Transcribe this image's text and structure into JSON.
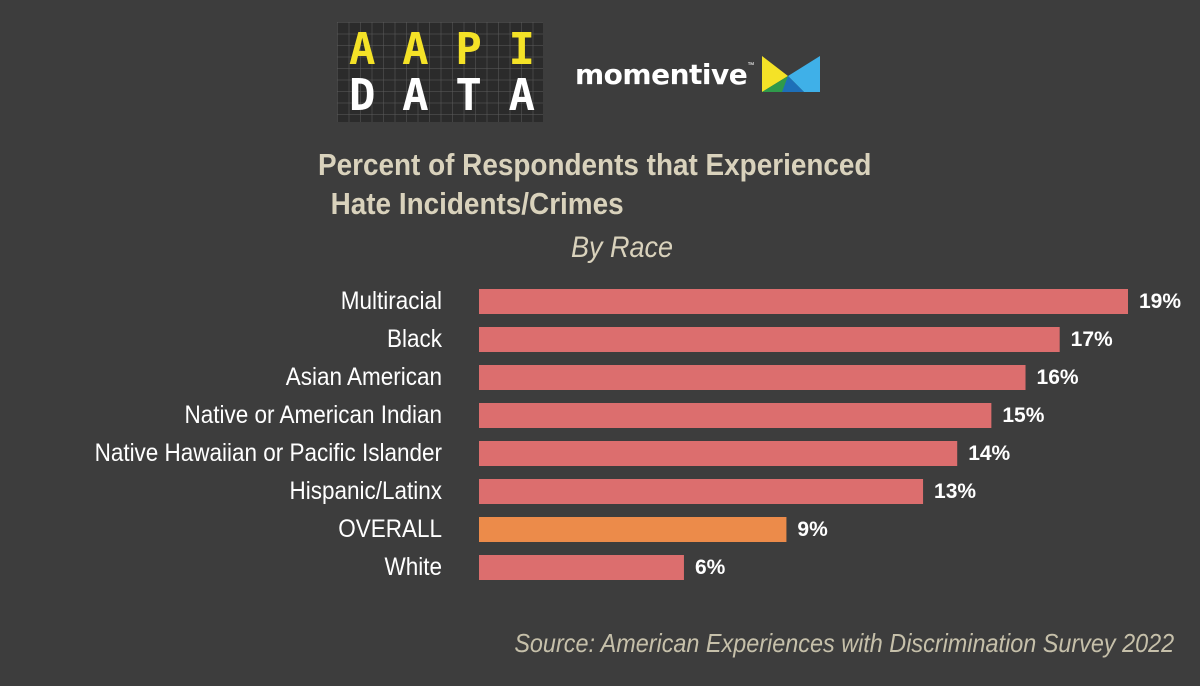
{
  "logos": {
    "aapi_line1": [
      "A",
      "A",
      "P",
      "I"
    ],
    "aapi_line2": [
      "D",
      "A",
      "T",
      "A"
    ],
    "momentive": "momentive",
    "momentive_tm": "™"
  },
  "colors": {
    "background": "#3d3d3d",
    "bar": "#dc6e6e",
    "bar_highlight": "#ec8b4a",
    "title": "#d9d2bc",
    "label": "#ffffff",
    "aapi_yellow": "#f4e227"
  },
  "chart_data": {
    "type": "bar",
    "orientation": "horizontal",
    "title": "Percent of Respondents that Experienced Hate Incidents/Crimes",
    "title_line1": "Percent of Respondents that Experienced",
    "title_line2": "Hate Incidents/Crimes",
    "subtitle": "By Race",
    "categories": [
      "Multiracial",
      "Black",
      "Asian American",
      "Native or American Indian",
      "Native Hawaiian or Pacific Islander",
      "Hispanic/Latinx",
      "OVERALL",
      "White"
    ],
    "values": [
      19,
      17,
      16,
      15,
      14,
      13,
      9,
      6
    ],
    "value_labels": [
      "19%",
      "17%",
      "16%",
      "15%",
      "14%",
      "13%",
      "9%",
      "6%"
    ],
    "highlight": "OVERALL",
    "xlim": [
      0,
      19
    ],
    "grid": false,
    "legend": "none"
  },
  "source": "Source: American Experiences with Discrimination Survey 2022"
}
